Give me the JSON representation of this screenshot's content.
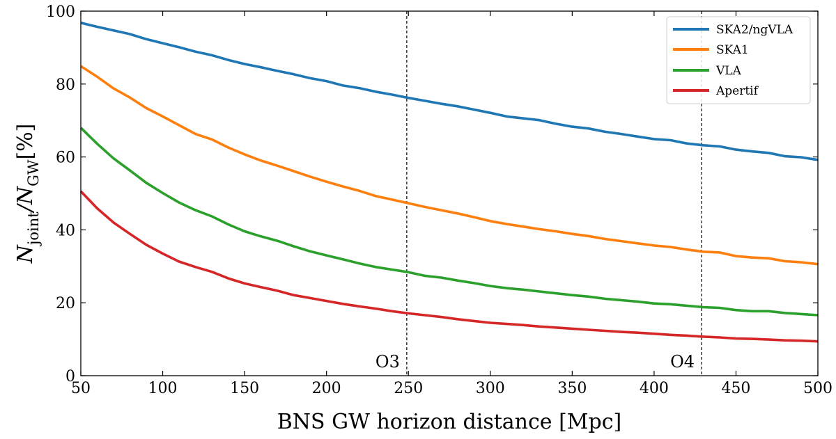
{
  "chart_data": {
    "type": "line",
    "title": "",
    "xlabel": "BNS GW horizon distance [Mpc]",
    "ylabel": "N_joint / N_GW [%]",
    "ylabel_parts": {
      "main": "N",
      "sub1": "joint",
      "sep": "/N",
      "sub2": "GW",
      "unit": "[%]"
    },
    "xlim": [
      50,
      500
    ],
    "ylim": [
      0,
      100
    ],
    "xticks": [
      50,
      100,
      150,
      200,
      250,
      300,
      350,
      400,
      450,
      500
    ],
    "yticks": [
      0,
      20,
      40,
      60,
      80,
      100
    ],
    "grid": false,
    "legend_position": "top-right",
    "x": [
      50,
      60,
      70,
      80,
      90,
      100,
      110,
      120,
      130,
      140,
      150,
      160,
      170,
      180,
      190,
      200,
      210,
      220,
      230,
      240,
      250,
      260,
      270,
      280,
      290,
      300,
      310,
      320,
      330,
      340,
      350,
      360,
      370,
      380,
      390,
      400,
      410,
      420,
      430,
      440,
      450,
      460,
      470,
      480,
      490,
      500
    ],
    "series": [
      {
        "name": "SKA2/ngVLA",
        "color": "#1f77b4",
        "values": [
          96.8,
          95.7,
          94.7,
          93.7,
          92.3,
          91.2,
          90.1,
          88.9,
          87.9,
          86.6,
          85.5,
          84.6,
          83.6,
          82.7,
          81.6,
          80.8,
          79.6,
          78.9,
          77.9,
          77.1,
          76.2,
          75.4,
          74.6,
          73.9,
          73.0,
          72.1,
          71.1,
          70.6,
          70.1,
          69.1,
          68.3,
          67.8,
          66.9,
          66.3,
          65.6,
          64.9,
          64.6,
          63.7,
          63.2,
          62.9,
          62.0,
          61.5,
          61.1,
          60.2,
          59.9,
          59.2
        ]
      },
      {
        "name": "SKA1",
        "color": "#ff7f0e",
        "values": [
          84.9,
          82.0,
          78.8,
          76.3,
          73.4,
          71.1,
          68.7,
          66.3,
          64.8,
          62.6,
          60.7,
          59.0,
          57.6,
          56.1,
          54.6,
          53.2,
          51.9,
          50.7,
          49.3,
          48.3,
          47.3,
          46.3,
          45.4,
          44.5,
          43.5,
          42.4,
          41.6,
          40.9,
          40.2,
          39.6,
          38.9,
          38.3,
          37.5,
          36.9,
          36.3,
          35.7,
          35.3,
          34.6,
          34.0,
          33.8,
          32.8,
          32.4,
          32.2,
          31.4,
          31.1,
          30.6
        ]
      },
      {
        "name": "VLA",
        "color": "#2ca02c",
        "values": [
          68.0,
          63.6,
          59.6,
          56.3,
          52.9,
          50.1,
          47.5,
          45.4,
          43.7,
          41.5,
          39.6,
          38.2,
          37.0,
          35.5,
          34.1,
          33.0,
          31.9,
          30.8,
          29.8,
          29.1,
          28.4,
          27.4,
          26.9,
          26.1,
          25.4,
          24.6,
          24.0,
          23.6,
          23.1,
          22.6,
          22.1,
          21.7,
          21.1,
          20.7,
          20.3,
          19.8,
          19.6,
          19.2,
          18.8,
          18.6,
          18.0,
          17.7,
          17.7,
          17.2,
          16.9,
          16.6
        ]
      },
      {
        "name": "Apertif",
        "color": "#d62728",
        "values": [
          50.6,
          45.9,
          42.0,
          38.9,
          35.9,
          33.5,
          31.3,
          29.8,
          28.5,
          26.7,
          25.3,
          24.3,
          23.3,
          22.1,
          21.3,
          20.5,
          19.7,
          19.0,
          18.4,
          17.7,
          17.1,
          16.6,
          16.1,
          15.5,
          15.0,
          14.5,
          14.2,
          13.9,
          13.5,
          13.2,
          12.9,
          12.6,
          12.3,
          12.0,
          11.8,
          11.5,
          11.2,
          11.0,
          10.7,
          10.5,
          10.2,
          10.1,
          9.9,
          9.7,
          9.6,
          9.4
        ]
      }
    ],
    "annotations": [
      {
        "type": "vline",
        "x": 249,
        "label": "O3"
      },
      {
        "type": "vline",
        "x": 429,
        "label": "O4"
      }
    ]
  }
}
